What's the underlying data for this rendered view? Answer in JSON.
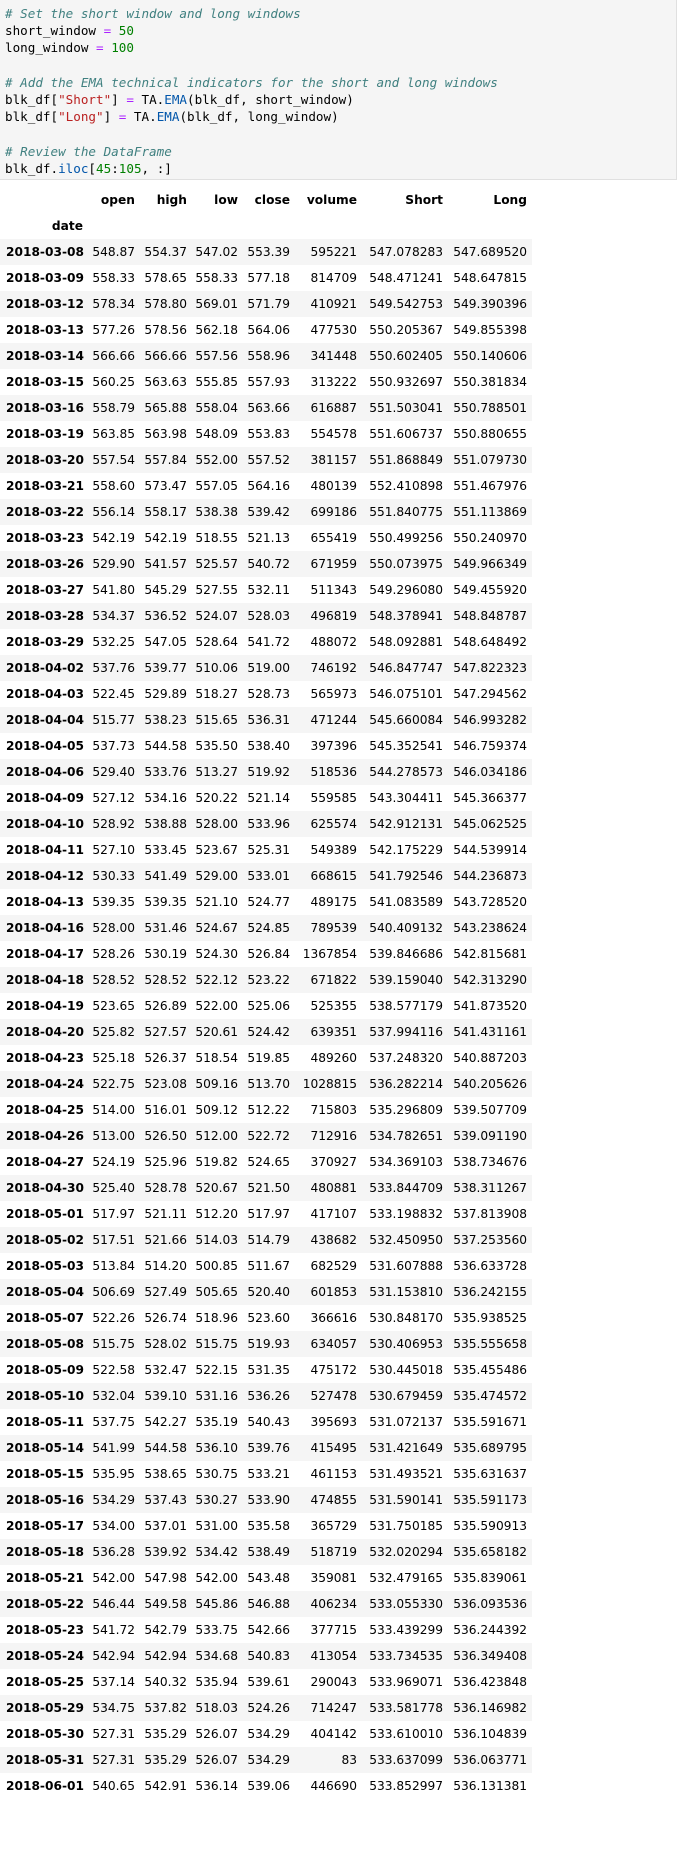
{
  "code": {
    "lines": [
      {
        "t": "comment",
        "text": "# Set the short window and long windows"
      },
      {
        "t": "assign",
        "name": "short_window",
        "op": " = ",
        "value": "50"
      },
      {
        "t": "assign",
        "name": "long_window",
        "op": " = ",
        "value": "100"
      },
      {
        "t": "blank",
        "text": ""
      },
      {
        "t": "comment",
        "text": "# Add the EMA technical indicators for the short and long windows"
      },
      {
        "t": "ema",
        "pre": "blk_df[",
        "key": "\"Short\"",
        "mid": "] ",
        "op": "=",
        "sp": " TA.",
        "fn": "EMA",
        "args": "(blk_df, short_window)"
      },
      {
        "t": "ema",
        "pre": "blk_df[",
        "key": "\"Long\"",
        "mid": "] ",
        "op": "=",
        "sp": " TA.",
        "fn": "EMA",
        "args": "(blk_df, long_window)"
      },
      {
        "t": "blank",
        "text": ""
      },
      {
        "t": "comment",
        "text": "# Review the DataFrame"
      },
      {
        "t": "iloc",
        "pre": "blk_df.",
        "fn": "iloc",
        "open": "[",
        "n1": "45",
        "colon": ":",
        "n2": "105",
        "rest": ", :]"
      }
    ]
  },
  "table": {
    "columns": [
      "open",
      "high",
      "low",
      "close",
      "volume",
      "Short",
      "Long"
    ],
    "index_name": "date",
    "rows": [
      [
        "2018-03-08",
        "548.87",
        "554.37",
        "547.02",
        "553.39",
        "595221",
        "547.078283",
        "547.689520"
      ],
      [
        "2018-03-09",
        "558.33",
        "578.65",
        "558.33",
        "577.18",
        "814709",
        "548.471241",
        "548.647815"
      ],
      [
        "2018-03-12",
        "578.34",
        "578.80",
        "569.01",
        "571.79",
        "410921",
        "549.542753",
        "549.390396"
      ],
      [
        "2018-03-13",
        "577.26",
        "578.56",
        "562.18",
        "564.06",
        "477530",
        "550.205367",
        "549.855398"
      ],
      [
        "2018-03-14",
        "566.66",
        "566.66",
        "557.56",
        "558.96",
        "341448",
        "550.602405",
        "550.140606"
      ],
      [
        "2018-03-15",
        "560.25",
        "563.63",
        "555.85",
        "557.93",
        "313222",
        "550.932697",
        "550.381834"
      ],
      [
        "2018-03-16",
        "558.79",
        "565.88",
        "558.04",
        "563.66",
        "616887",
        "551.503041",
        "550.788501"
      ],
      [
        "2018-03-19",
        "563.85",
        "563.98",
        "548.09",
        "553.83",
        "554578",
        "551.606737",
        "550.880655"
      ],
      [
        "2018-03-20",
        "557.54",
        "557.84",
        "552.00",
        "557.52",
        "381157",
        "551.868849",
        "551.079730"
      ],
      [
        "2018-03-21",
        "558.60",
        "573.47",
        "557.05",
        "564.16",
        "480139",
        "552.410898",
        "551.467976"
      ],
      [
        "2018-03-22",
        "556.14",
        "558.17",
        "538.38",
        "539.42",
        "699186",
        "551.840775",
        "551.113869"
      ],
      [
        "2018-03-23",
        "542.19",
        "542.19",
        "518.55",
        "521.13",
        "655419",
        "550.499256",
        "550.240970"
      ],
      [
        "2018-03-26",
        "529.90",
        "541.57",
        "525.57",
        "540.72",
        "671959",
        "550.073975",
        "549.966349"
      ],
      [
        "2018-03-27",
        "541.80",
        "545.29",
        "527.55",
        "532.11",
        "511343",
        "549.296080",
        "549.455920"
      ],
      [
        "2018-03-28",
        "534.37",
        "536.52",
        "524.07",
        "528.03",
        "496819",
        "548.378941",
        "548.848787"
      ],
      [
        "2018-03-29",
        "532.25",
        "547.05",
        "528.64",
        "541.72",
        "488072",
        "548.092881",
        "548.648492"
      ],
      [
        "2018-04-02",
        "537.76",
        "539.77",
        "510.06",
        "519.00",
        "746192",
        "546.847747",
        "547.822323"
      ],
      [
        "2018-04-03",
        "522.45",
        "529.89",
        "518.27",
        "528.73",
        "565973",
        "546.075101",
        "547.294562"
      ],
      [
        "2018-04-04",
        "515.77",
        "538.23",
        "515.65",
        "536.31",
        "471244",
        "545.660084",
        "546.993282"
      ],
      [
        "2018-04-05",
        "537.73",
        "544.58",
        "535.50",
        "538.40",
        "397396",
        "545.352541",
        "546.759374"
      ],
      [
        "2018-04-06",
        "529.40",
        "533.76",
        "513.27",
        "519.92",
        "518536",
        "544.278573",
        "546.034186"
      ],
      [
        "2018-04-09",
        "527.12",
        "534.16",
        "520.22",
        "521.14",
        "559585",
        "543.304411",
        "545.366377"
      ],
      [
        "2018-04-10",
        "528.92",
        "538.88",
        "528.00",
        "533.96",
        "625574",
        "542.912131",
        "545.062525"
      ],
      [
        "2018-04-11",
        "527.10",
        "533.45",
        "523.67",
        "525.31",
        "549389",
        "542.175229",
        "544.539914"
      ],
      [
        "2018-04-12",
        "530.33",
        "541.49",
        "529.00",
        "533.01",
        "668615",
        "541.792546",
        "544.236873"
      ],
      [
        "2018-04-13",
        "539.35",
        "539.35",
        "521.10",
        "524.77",
        "489175",
        "541.083589",
        "543.728520"
      ],
      [
        "2018-04-16",
        "528.00",
        "531.46",
        "524.67",
        "524.85",
        "789539",
        "540.409132",
        "543.238624"
      ],
      [
        "2018-04-17",
        "528.26",
        "530.19",
        "524.30",
        "526.84",
        "1367854",
        "539.846686",
        "542.815681"
      ],
      [
        "2018-04-18",
        "528.52",
        "528.52",
        "522.12",
        "523.22",
        "671822",
        "539.159040",
        "542.313290"
      ],
      [
        "2018-04-19",
        "523.65",
        "526.89",
        "522.00",
        "525.06",
        "525355",
        "538.577179",
        "541.873520"
      ],
      [
        "2018-04-20",
        "525.82",
        "527.57",
        "520.61",
        "524.42",
        "639351",
        "537.994116",
        "541.431161"
      ],
      [
        "2018-04-23",
        "525.18",
        "526.37",
        "518.54",
        "519.85",
        "489260",
        "537.248320",
        "540.887203"
      ],
      [
        "2018-04-24",
        "522.75",
        "523.08",
        "509.16",
        "513.70",
        "1028815",
        "536.282214",
        "540.205626"
      ],
      [
        "2018-04-25",
        "514.00",
        "516.01",
        "509.12",
        "512.22",
        "715803",
        "535.296809",
        "539.507709"
      ],
      [
        "2018-04-26",
        "513.00",
        "526.50",
        "512.00",
        "522.72",
        "712916",
        "534.782651",
        "539.091190"
      ],
      [
        "2018-04-27",
        "524.19",
        "525.96",
        "519.82",
        "524.65",
        "370927",
        "534.369103",
        "538.734676"
      ],
      [
        "2018-04-30",
        "525.40",
        "528.78",
        "520.67",
        "521.50",
        "480881",
        "533.844709",
        "538.311267"
      ],
      [
        "2018-05-01",
        "517.97",
        "521.11",
        "512.20",
        "517.97",
        "417107",
        "533.198832",
        "537.813908"
      ],
      [
        "2018-05-02",
        "517.51",
        "521.66",
        "514.03",
        "514.79",
        "438682",
        "532.450950",
        "537.253560"
      ],
      [
        "2018-05-03",
        "513.84",
        "514.20",
        "500.85",
        "511.67",
        "682529",
        "531.607888",
        "536.633728"
      ],
      [
        "2018-05-04",
        "506.69",
        "527.49",
        "505.65",
        "520.40",
        "601853",
        "531.153810",
        "536.242155"
      ],
      [
        "2018-05-07",
        "522.26",
        "526.74",
        "518.96",
        "523.60",
        "366616",
        "530.848170",
        "535.938525"
      ],
      [
        "2018-05-08",
        "515.75",
        "528.02",
        "515.75",
        "519.93",
        "634057",
        "530.406953",
        "535.555658"
      ],
      [
        "2018-05-09",
        "522.58",
        "532.47",
        "522.15",
        "531.35",
        "475172",
        "530.445018",
        "535.455486"
      ],
      [
        "2018-05-10",
        "532.04",
        "539.10",
        "531.16",
        "536.26",
        "527478",
        "530.679459",
        "535.474572"
      ],
      [
        "2018-05-11",
        "537.75",
        "542.27",
        "535.19",
        "540.43",
        "395693",
        "531.072137",
        "535.591671"
      ],
      [
        "2018-05-14",
        "541.99",
        "544.58",
        "536.10",
        "539.76",
        "415495",
        "531.421649",
        "535.689795"
      ],
      [
        "2018-05-15",
        "535.95",
        "538.65",
        "530.75",
        "533.21",
        "461153",
        "531.493521",
        "535.631637"
      ],
      [
        "2018-05-16",
        "534.29",
        "537.43",
        "530.27",
        "533.90",
        "474855",
        "531.590141",
        "535.591173"
      ],
      [
        "2018-05-17",
        "534.00",
        "537.01",
        "531.00",
        "535.58",
        "365729",
        "531.750185",
        "535.590913"
      ],
      [
        "2018-05-18",
        "536.28",
        "539.92",
        "534.42",
        "538.49",
        "518719",
        "532.020294",
        "535.658182"
      ],
      [
        "2018-05-21",
        "542.00",
        "547.98",
        "542.00",
        "543.48",
        "359081",
        "532.479165",
        "535.839061"
      ],
      [
        "2018-05-22",
        "546.44",
        "549.58",
        "545.86",
        "546.88",
        "406234",
        "533.055330",
        "536.093536"
      ],
      [
        "2018-05-23",
        "541.72",
        "542.79",
        "533.75",
        "542.66",
        "377715",
        "533.439299",
        "536.244392"
      ],
      [
        "2018-05-24",
        "542.94",
        "542.94",
        "534.68",
        "540.83",
        "413054",
        "533.734535",
        "536.349408"
      ],
      [
        "2018-05-25",
        "537.14",
        "540.32",
        "535.94",
        "539.61",
        "290043",
        "533.969071",
        "536.423848"
      ],
      [
        "2018-05-29",
        "534.75",
        "537.82",
        "518.03",
        "524.26",
        "714247",
        "533.581778",
        "536.146982"
      ],
      [
        "2018-05-30",
        "527.31",
        "535.29",
        "526.07",
        "534.29",
        "404142",
        "533.610010",
        "536.104839"
      ],
      [
        "2018-05-31",
        "527.31",
        "535.29",
        "526.07",
        "534.29",
        "83",
        "533.637099",
        "536.063771"
      ],
      [
        "2018-06-01",
        "540.65",
        "542.91",
        "536.14",
        "539.06",
        "446690",
        "533.852997",
        "536.131381"
      ]
    ]
  }
}
